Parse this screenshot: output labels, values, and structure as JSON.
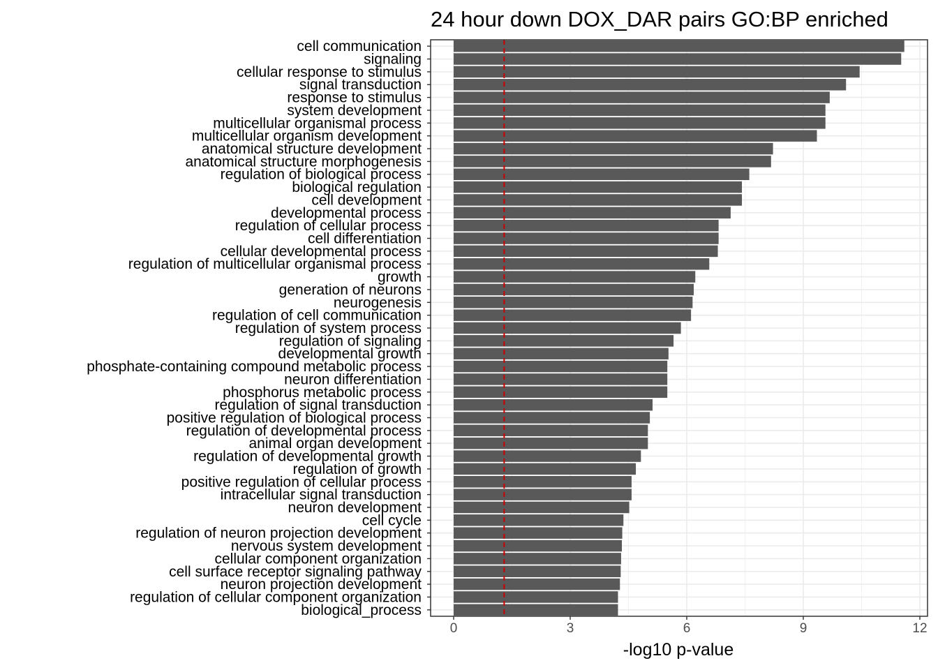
{
  "chart_data": {
    "type": "bar",
    "orientation": "horizontal",
    "title": "24 hour down DOX_DAR pairs GO:BP enriched",
    "xlabel": "-log10 p-value",
    "ylabel": "",
    "xlim": [
      -0.55,
      12.15
    ],
    "xticks": [
      0,
      3,
      6,
      9,
      12
    ],
    "grid": true,
    "bar_color": "#595959",
    "reference_line": {
      "x": 1.3,
      "color": "#cc0000",
      "style": "dashed"
    },
    "categories": [
      "cell communication",
      "signaling",
      "cellular response to stimulus",
      "signal transduction",
      "response to stimulus",
      "system development",
      "multicellular organismal process",
      "multicellular organism development",
      "anatomical structure development",
      "anatomical structure morphogenesis",
      "regulation of biological process",
      "biological regulation",
      "cell development",
      "developmental process",
      "regulation of cellular process",
      "cell differentiation",
      "cellular developmental process",
      "regulation of multicellular organismal process",
      "growth",
      "generation of neurons",
      "neurogenesis",
      "regulation of cell communication",
      "regulation of system process",
      "regulation of signaling",
      "developmental growth",
      "phosphate-containing compound metabolic process",
      "neuron differentiation",
      "phosphorus metabolic process",
      "regulation of signal transduction",
      "positive regulation of biological process",
      "regulation of developmental process",
      "animal organ development",
      "regulation of developmental growth",
      "regulation of growth",
      "positive regulation of cellular process",
      "intracellular signal transduction",
      "neuron development",
      "cell cycle",
      "regulation of neuron projection development",
      "nervous system development",
      "cellular component organization",
      "cell surface receptor signaling pathway",
      "neuron projection development",
      "regulation of cellular component organization",
      "biological_process"
    ],
    "values": [
      11.6,
      11.52,
      10.45,
      10.1,
      9.68,
      9.57,
      9.57,
      9.35,
      8.22,
      8.17,
      7.61,
      7.42,
      7.42,
      7.13,
      6.82,
      6.82,
      6.8,
      6.58,
      6.22,
      6.18,
      6.15,
      6.11,
      5.85,
      5.66,
      5.53,
      5.5,
      5.5,
      5.5,
      5.12,
      5.05,
      5.0,
      5.0,
      4.82,
      4.69,
      4.58,
      4.58,
      4.52,
      4.37,
      4.34,
      4.33,
      4.31,
      4.3,
      4.28,
      4.23,
      4.23
    ]
  }
}
